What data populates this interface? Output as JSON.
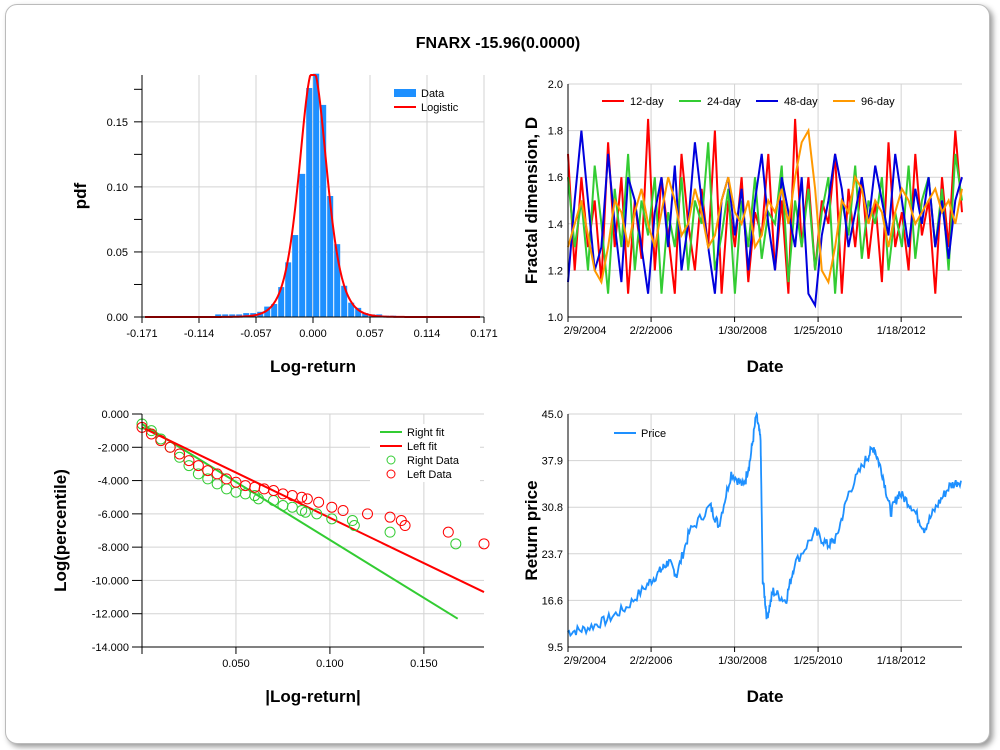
{
  "title": "FNARX -15.96(0.0000)",
  "chart_data": [
    {
      "type": "bar",
      "title": "",
      "xlabel": "Log-return",
      "ylabel": "pdf",
      "xlim": [
        -0.171,
        0.171
      ],
      "ylim": [
        0,
        0.186
      ],
      "xticks": [
        "-0.171",
        "-0.114",
        "-0.057",
        "0.000",
        "0.057",
        "0.114",
        "0.171"
      ],
      "yticks": [
        "0.00",
        "0.05",
        "0.10",
        "0.15"
      ],
      "legend": [
        "Data",
        "Logistic"
      ],
      "legend_position": "top-right",
      "bar_width": 0.007,
      "bin_centers": [
        -0.0943,
        -0.0873,
        -0.0803,
        -0.0733,
        -0.0663,
        -0.0593,
        -0.0523,
        -0.0453,
        -0.0383,
        -0.0313,
        -0.0243,
        -0.0173,
        -0.0103,
        -0.0033,
        0.0037,
        0.0107,
        0.0177,
        0.0247,
        0.0317,
        0.0387,
        0.0457,
        0.0527,
        0.0597,
        0.0667,
        0.0737,
        0.0807
      ],
      "values": [
        0.002,
        0.002,
        0.002,
        0.002,
        0.003,
        0.003,
        0.004,
        0.008,
        0.01,
        0.023,
        0.042,
        0.063,
        0.11,
        0.176,
        0.187,
        0.163,
        0.093,
        0.056,
        0.024,
        0.011,
        0.007,
        0.003,
        0.002,
        0.002,
        0.001,
        0.001
      ],
      "logistic": {
        "loc": 0.0,
        "scale": 0.0092
      }
    },
    {
      "type": "line",
      "xlabel": "Date",
      "ylabel": "Fractal dimension, D",
      "xlim": [
        2004.11,
        2013.5
      ],
      "ylim": [
        1.0,
        2.0
      ],
      "xticks": [
        {
          "v": 2004.11,
          "label": "2/9/2004"
        },
        {
          "v": 2006.09,
          "label": "2/2/2006"
        },
        {
          "v": 2008.08,
          "label": "1/30/2008"
        },
        {
          "v": 2010.07,
          "label": "1/25/2010"
        },
        {
          "v": 2012.05,
          "label": "1/18/2012"
        }
      ],
      "yticks": [
        "1.0",
        "1.2",
        "1.4",
        "1.6",
        "1.8",
        "2.0"
      ],
      "legend_position": "top",
      "series": [
        {
          "name": "12-day",
          "color": "#ff0000",
          "values": [
            1.7,
            1.2,
            1.6,
            1.3,
            1.5,
            1.15,
            1.75,
            1.3,
            1.6,
            1.1,
            1.5,
            1.25,
            1.85,
            1.2,
            1.6,
            1.35,
            1.1,
            1.7,
            1.4,
            1.2,
            1.55,
            1.3,
            1.8,
            1.1,
            1.5,
            1.3,
            1.6,
            1.15,
            1.45,
            1.35,
            1.7,
            1.2,
            1.5,
            1.1,
            1.85,
            1.3,
            1.6,
            1.2,
            1.5,
            1.4,
            1.7,
            1.1,
            1.55,
            1.3,
            1.6,
            1.25,
            1.5,
            1.15,
            1.75,
            1.3,
            1.45,
            1.2,
            1.7,
            1.35,
            1.5,
            1.1,
            1.6,
            1.3,
            1.8,
            1.45
          ]
        },
        {
          "name": "24-day",
          "color": "#33cc33",
          "values": [
            1.6,
            1.3,
            1.5,
            1.2,
            1.65,
            1.4,
            1.1,
            1.55,
            1.3,
            1.7,
            1.2,
            1.5,
            1.35,
            1.6,
            1.1,
            1.45,
            1.3,
            1.6,
            1.2,
            1.5,
            1.4,
            1.75,
            1.2,
            1.35,
            1.55,
            1.1,
            1.5,
            1.3,
            1.6,
            1.25,
            1.45,
            1.4,
            1.65,
            1.15,
            1.5,
            1.3,
            1.55,
            1.2,
            1.45,
            1.6,
            1.1,
            1.5,
            1.35,
            1.65,
            1.25,
            1.5,
            1.4,
            1.6,
            1.2,
            1.45,
            1.3,
            1.65,
            1.25,
            1.5,
            1.6,
            1.3,
            1.55,
            1.2,
            1.7,
            1.5
          ]
        },
        {
          "name": "48-day",
          "color": "#0000dd",
          "values": [
            1.15,
            1.5,
            1.8,
            1.5,
            1.2,
            1.3,
            1.7,
            1.4,
            1.15,
            1.6,
            1.5,
            1.3,
            1.1,
            1.45,
            1.6,
            1.3,
            1.65,
            1.2,
            1.4,
            1.75,
            1.5,
            1.3,
            1.1,
            1.5,
            1.6,
            1.35,
            1.55,
            1.2,
            1.5,
            1.7,
            1.4,
            1.2,
            1.6,
            1.45,
            1.3,
            1.6,
            1.1,
            1.05,
            1.35,
            1.5,
            1.7,
            1.55,
            1.3,
            1.45,
            1.6,
            1.4,
            1.65,
            1.5,
            1.35,
            1.7,
            1.5,
            1.3,
            1.55,
            1.4,
            1.6,
            1.3,
            1.5,
            1.25,
            1.5,
            1.6
          ]
        },
        {
          "name": "96-day",
          "color": "#ff9900",
          "values": [
            1.3,
            1.4,
            1.5,
            1.35,
            1.2,
            1.15,
            1.3,
            1.5,
            1.45,
            1.3,
            1.45,
            1.55,
            1.4,
            1.3,
            1.45,
            1.6,
            1.5,
            1.35,
            1.4,
            1.55,
            1.45,
            1.3,
            1.35,
            1.5,
            1.6,
            1.45,
            1.4,
            1.5,
            1.3,
            1.35,
            1.5,
            1.45,
            1.55,
            1.4,
            1.6,
            1.75,
            1.8,
            1.55,
            1.2,
            1.15,
            1.3,
            1.5,
            1.45,
            1.6,
            1.55,
            1.4,
            1.5,
            1.45,
            1.3,
            1.45,
            1.55,
            1.5,
            1.4,
            1.45,
            1.5,
            1.55,
            1.45,
            1.5,
            1.4,
            1.55
          ]
        }
      ]
    },
    {
      "type": "scatter",
      "xlabel": "|Log-return|",
      "ylabel": "Log(percentile)",
      "xlim": [
        0,
        0.182
      ],
      "ylim": [
        -14,
        0
      ],
      "xticks": [
        "0.050",
        "0.100",
        "0.150"
      ],
      "yticks": [
        "0.000",
        "-2.000",
        "-4.000",
        "-6.000",
        "-8.000",
        "-10.000",
        "-12.000",
        "-14.000"
      ],
      "legend_position": "top-right",
      "right_fit": {
        "name": "Right fit",
        "color": "#33cc33",
        "x": [
          0,
          0.168
        ],
        "y": [
          -0.6,
          -12.3
        ]
      },
      "left_fit": {
        "name": "Left fit",
        "color": "#ff0000",
        "x": [
          0,
          0.182
        ],
        "y": [
          -0.8,
          -10.7
        ]
      },
      "right_data": {
        "name": "Right Data",
        "color": "#33cc33",
        "x": [
          0,
          0.005,
          0.01,
          0.015,
          0.02,
          0.025,
          0.03,
          0.035,
          0.04,
          0.045,
          0.05,
          0.055,
          0.06,
          0.062,
          0.07,
          0.075,
          0.08,
          0.085,
          0.087,
          0.093,
          0.101,
          0.112,
          0.113,
          0.132,
          0.167
        ],
        "y": [
          -0.6,
          -1.0,
          -1.5,
          -2.0,
          -2.6,
          -3.1,
          -3.6,
          -3.9,
          -4.2,
          -4.5,
          -4.7,
          -4.8,
          -4.9,
          -5.1,
          -5.2,
          -5.5,
          -5.6,
          -5.8,
          -5.9,
          -6.0,
          -6.3,
          -6.4,
          -6.7,
          -7.1,
          -7.8
        ]
      },
      "left_data": {
        "name": "Left Data",
        "color": "#ff0000",
        "x": [
          0,
          0.005,
          0.01,
          0.015,
          0.02,
          0.025,
          0.03,
          0.035,
          0.04,
          0.045,
          0.05,
          0.055,
          0.06,
          0.065,
          0.07,
          0.075,
          0.08,
          0.085,
          0.088,
          0.094,
          0.101,
          0.107,
          0.12,
          0.132,
          0.138,
          0.14,
          0.163,
          0.182
        ],
        "y": [
          -0.8,
          -1.2,
          -1.6,
          -2.0,
          -2.4,
          -2.8,
          -3.1,
          -3.4,
          -3.6,
          -3.9,
          -4.1,
          -4.3,
          -4.4,
          -4.5,
          -4.6,
          -4.8,
          -4.9,
          -5.0,
          -5.1,
          -5.3,
          -5.6,
          -5.8,
          -6.0,
          -6.2,
          -6.4,
          -6.7,
          -7.1,
          -7.8
        ]
      }
    },
    {
      "type": "line",
      "xlabel": "Date",
      "ylabel": "Return price",
      "xlim": [
        2004.11,
        2013.5
      ],
      "ylim": [
        9.5,
        45.0
      ],
      "xticks": [
        {
          "v": 2004.11,
          "label": "2/9/2004"
        },
        {
          "v": 2006.09,
          "label": "2/2/2006"
        },
        {
          "v": 2008.08,
          "label": "1/30/2008"
        },
        {
          "v": 2010.07,
          "label": "1/25/2010"
        },
        {
          "v": 2012.05,
          "label": "1/18/2012"
        }
      ],
      "yticks": [
        "9.5",
        "16.6",
        "23.7",
        "30.8",
        "37.9",
        "45.0"
      ],
      "legend_position": "top-left",
      "series": [
        {
          "name": "Price",
          "color": "#1e90ff",
          "x": [
            2004.1,
            2004.5,
            2005,
            2005.5,
            2006,
            2006.3,
            2006.5,
            2006.7,
            2007,
            2007.5,
            2007.7,
            2008,
            2008.3,
            2008.45,
            2008.6,
            2008.7,
            2008.75,
            2008.85,
            2009,
            2009.3,
            2009.5,
            2010,
            2010.3,
            2010.5,
            2010.8,
            2011.2,
            2011.4,
            2011.6,
            2011.8,
            2012,
            2012.3,
            2012.6,
            2012.9,
            2013.2,
            2013.5
          ],
          "y": [
            11.8,
            12.2,
            13.5,
            15.5,
            19,
            21,
            22.5,
            20.5,
            27,
            31,
            28,
            36,
            34,
            38,
            44.9,
            41,
            20,
            14,
            18,
            16.5,
            22,
            27,
            25,
            26,
            33,
            38,
            40,
            36,
            30,
            33,
            31,
            27.5,
            31,
            34,
            35
          ]
        }
      ]
    }
  ]
}
